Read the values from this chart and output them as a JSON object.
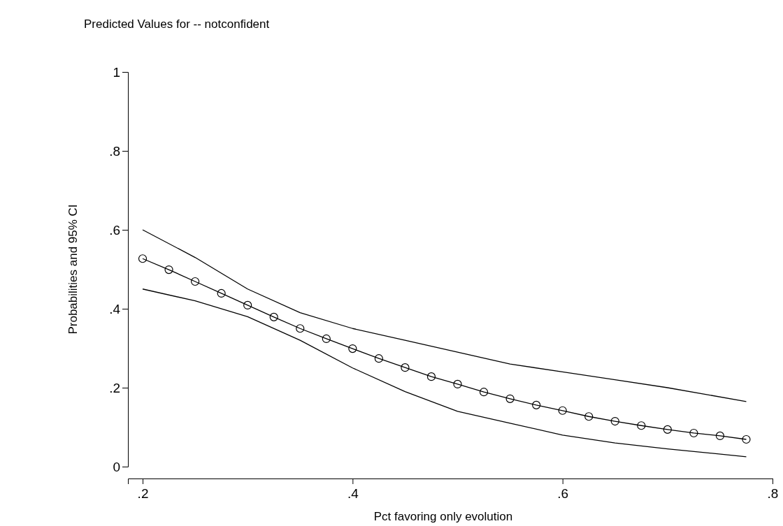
{
  "chart_data": {
    "type": "line",
    "title": "Predicted Values for  -- notconfident",
    "xlabel": "Pct favoring only evolution",
    "ylabel": "Probabilities and 95% CI",
    "xlim": [
      0.186,
      0.8
    ],
    "xticks": [
      {
        "value": 0.2,
        "label": ".2"
      },
      {
        "value": 0.4,
        "label": ".4"
      },
      {
        "value": 0.6,
        "label": ".6"
      },
      {
        "value": 0.8,
        "label": ".8"
      }
    ],
    "ylim": [
      0,
      1
    ],
    "yticks": [
      0,
      {
        "value": 0.2,
        "label": ".2"
      },
      {
        "value": 0.4,
        "label": ".4"
      },
      {
        "value": 0.6,
        "label": ".6"
      },
      {
        "value": 0.8,
        "label": ".8"
      },
      1
    ],
    "grid": false,
    "series": [
      {
        "color": "#000000",
        "marker": "circle",
        "x": [
          0.2,
          0.225,
          0.25,
          0.275,
          0.3,
          0.325,
          0.35,
          0.375,
          0.4,
          0.425,
          0.45,
          0.475,
          0.5,
          0.525,
          0.55,
          0.575,
          0.6,
          0.625,
          0.65,
          0.675,
          0.7,
          0.725,
          0.75,
          0.775
        ],
        "values": [
          0.527,
          0.499,
          0.469,
          0.439,
          0.409,
          0.379,
          0.35,
          0.324,
          0.299,
          0.274,
          0.251,
          0.228,
          0.209,
          0.189,
          0.172,
          0.156,
          0.142,
          0.127,
          0.115,
          0.104,
          0.094,
          0.085,
          0.078,
          0.069
        ]
      },
      {
        "color": "#000000",
        "marker": "none",
        "x": [
          0.2,
          0.25,
          0.3,
          0.35,
          0.4,
          0.45,
          0.5,
          0.55,
          0.6,
          0.65,
          0.7,
          0.775
        ],
        "values": [
          0.6,
          0.53,
          0.45,
          0.39,
          0.35,
          0.32,
          0.29,
          0.26,
          0.24,
          0.22,
          0.2,
          0.165
        ]
      },
      {
        "color": "#000000",
        "marker": "none",
        "x": [
          0.2,
          0.25,
          0.3,
          0.35,
          0.4,
          0.45,
          0.5,
          0.55,
          0.6,
          0.65,
          0.7,
          0.775
        ],
        "values": [
          0.45,
          0.42,
          0.38,
          0.32,
          0.25,
          0.19,
          0.14,
          0.11,
          0.08,
          0.06,
          0.045,
          0.025
        ]
      }
    ]
  }
}
